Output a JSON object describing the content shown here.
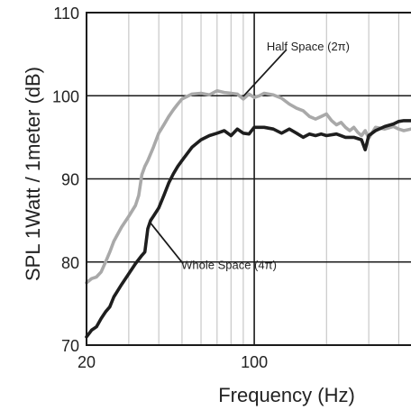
{
  "chart_data": {
    "type": "line",
    "xscale": "log",
    "xlim": [
      20,
      450
    ],
    "ylim": [
      70,
      110
    ],
    "xlabel": "Frequency (Hz)",
    "ylabel": "SPL 1Watt / 1meter (dB)",
    "x_ticks": [
      {
        "value": 20,
        "label": "20"
      },
      {
        "value": 100,
        "label": "100"
      }
    ],
    "y_ticks": [
      {
        "value": 70,
        "label": "70"
      },
      {
        "value": 80,
        "label": "80"
      },
      {
        "value": 90,
        "label": "90"
      },
      {
        "value": 100,
        "label": "100"
      },
      {
        "value": 110,
        "label": "110"
      }
    ],
    "major_grid_x": [
      100
    ],
    "minor_grid_x": [
      30,
      40,
      50,
      60,
      70,
      80,
      90,
      200,
      300,
      400
    ],
    "grid": true,
    "series": [
      {
        "name": "Half Space (2π)",
        "color": "#a9a9a9",
        "x": [
          20,
          21,
          22,
          23,
          24,
          25,
          26,
          28,
          30,
          32,
          33,
          34,
          35,
          36,
          38,
          40,
          42,
          44,
          46,
          48,
          50,
          55,
          60,
          65,
          70,
          75,
          80,
          85,
          90,
          95,
          100,
          105,
          110,
          120,
          130,
          140,
          150,
          160,
          170,
          180,
          190,
          200,
          210,
          220,
          230,
          240,
          250,
          260,
          270,
          280,
          290,
          300,
          320,
          350,
          380,
          400,
          420,
          450
        ],
        "y": [
          77.5,
          78,
          78.2,
          78.8,
          80,
          81.2,
          82.5,
          84.2,
          85.5,
          86.8,
          88,
          90.5,
          91.5,
          92.2,
          93.8,
          95.5,
          96.5,
          97.5,
          98.3,
          99,
          99.6,
          100.2,
          100.3,
          100.1,
          100.6,
          100.4,
          100.3,
          100.2,
          99.6,
          100.2,
          99.8,
          100,
          100.3,
          100.1,
          99.7,
          99,
          98.5,
          98.2,
          97.5,
          97.2,
          97.5,
          97.8,
          97,
          96.5,
          96.8,
          96.2,
          95.8,
          96.2,
          95.6,
          95.2,
          95.8,
          94.9,
          96.2,
          96,
          96.3,
          96,
          95.8,
          96
        ]
      },
      {
        "name": "Whole Space (4π)",
        "color": "#1e1e1e",
        "x": [
          20,
          21,
          22,
          23,
          24,
          25,
          26,
          28,
          30,
          32,
          34,
          35,
          36,
          37,
          38,
          40,
          42,
          44,
          46,
          48,
          50,
          55,
          60,
          65,
          70,
          75,
          80,
          85,
          90,
          95,
          100,
          110,
          120,
          130,
          140,
          150,
          160,
          170,
          180,
          190,
          200,
          220,
          240,
          260,
          280,
          290,
          300,
          320,
          350,
          380,
          400,
          420,
          450
        ],
        "y": [
          71,
          71.8,
          72.2,
          73.2,
          74,
          74.6,
          75.8,
          77.3,
          78.6,
          79.8,
          80.8,
          81.2,
          84,
          85,
          85.5,
          86.5,
          88,
          89.5,
          90.6,
          91.5,
          92.2,
          93.8,
          94.7,
          95.2,
          95.5,
          95.8,
          95.2,
          96,
          95.5,
          95.4,
          96.2,
          96.2,
          96,
          95.5,
          96,
          95.5,
          95,
          95.4,
          95.2,
          95.4,
          95.2,
          95.4,
          95,
          95,
          94.7,
          93.5,
          95.2,
          95.8,
          96.3,
          96.6,
          96.9,
          97,
          97
        ]
      }
    ],
    "annotations": [
      {
        "text": "Half Space (2π)",
        "series": 0,
        "x": 90
      },
      {
        "text": "Whole Space (4π)",
        "series": 1,
        "x": 37
      }
    ]
  }
}
